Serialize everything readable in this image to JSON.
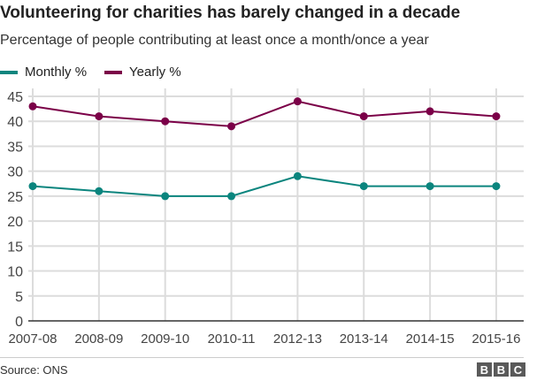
{
  "chart_data": {
    "type": "line",
    "title": "Volunteering for charities has barely changed in a decade",
    "subtitle": "Percentage of people contributing at least once a month/once a year",
    "categories": [
      "2007-08",
      "2008-09",
      "2009-10",
      "2010-11",
      "2012-13",
      "2013-14",
      "2014-15",
      "2015-16"
    ],
    "series": [
      {
        "name": "Monthly %",
        "color": "#0b857e",
        "values": [
          27,
          26,
          25,
          25,
          29,
          27,
          27,
          27
        ]
      },
      {
        "name": "Yearly %",
        "color": "#7b0048",
        "values": [
          43,
          41,
          40,
          39,
          44,
          41,
          42,
          41
        ]
      }
    ],
    "yticks": [
      "0",
      "5",
      "10",
      "15",
      "20",
      "25",
      "30",
      "35",
      "40",
      "45"
    ],
    "ylim": [
      0,
      45
    ],
    "grid": true,
    "legend": "top-left",
    "source": "Source: ONS"
  },
  "logo": "BBC"
}
